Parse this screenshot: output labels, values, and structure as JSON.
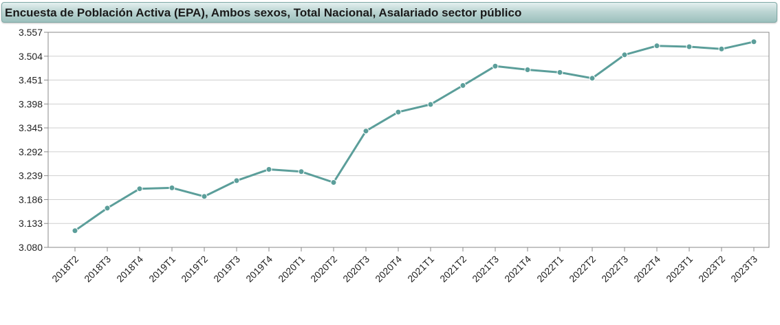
{
  "title": "Encuesta de Población Activa (EPA), Ambos sexos, Total Nacional, Asalariado sector público",
  "chart_data": {
    "type": "line",
    "title": "Encuesta de Población Activa (EPA), Ambos sexos, Total Nacional, Asalariado sector público",
    "xlabel": "",
    "ylabel": "",
    "categories": [
      "2018T2",
      "2018T3",
      "2018T4",
      "2019T1",
      "2019T2",
      "2019T3",
      "2019T4",
      "2020T1",
      "2020T2",
      "2020T3",
      "2020T4",
      "2021T1",
      "2021T2",
      "2021T3",
      "2021T4",
      "2022T1",
      "2022T2",
      "2022T3",
      "2022T4",
      "2023T1",
      "2023T2",
      "2023T3"
    ],
    "series": [
      {
        "values": [
          3.117,
          3.167,
          3.21,
          3.212,
          3.193,
          3.228,
          3.253,
          3.248,
          3.224,
          3.338,
          3.38,
          3.397,
          3.439,
          3.482,
          3.474,
          3.468,
          3.455,
          3.507,
          3.527,
          3.525,
          3.52,
          3.536
        ],
        "color": "#5b9e9a"
      }
    ],
    "ylim": [
      3.08,
      3.557
    ],
    "yticks": [
      "3.557",
      "3.504",
      "3.451",
      "3.398",
      "3.345",
      "3.292",
      "3.239",
      "3.186",
      "3.133",
      "3.080"
    ],
    "grid": true,
    "legend": "none"
  },
  "colors": {
    "line": "#5b9e9a",
    "marker": "#5b9e9a",
    "grid": "#cfcfcf",
    "axis": "#888888"
  }
}
